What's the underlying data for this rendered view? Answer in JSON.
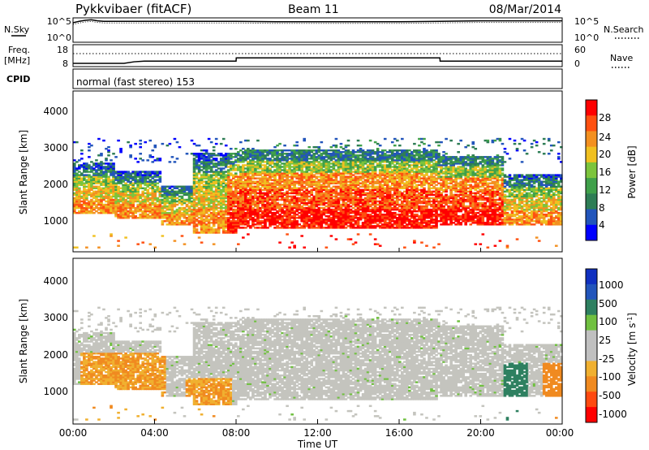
{
  "header": {
    "title": "Pykkvibaer (fitACF)",
    "beam": "Beam 11",
    "date": "08/Mar/2014"
  },
  "sky_panel": {
    "left_label": "N.Sky",
    "right_label": "N.Search",
    "left_ticks": [
      "10^5",
      "10^0"
    ],
    "right_ticks": [
      "10^5",
      "10^0"
    ]
  },
  "freq_panel": {
    "left_label_1": "Freq.",
    "left_label_2": "[MHz]",
    "right_label": "Nave",
    "left_ticks": [
      "18",
      "8"
    ],
    "right_ticks": [
      "60",
      "0"
    ]
  },
  "cpid_panel": {
    "label": "CPID",
    "text": "normal (fast stereo) 153"
  },
  "power_panel": {
    "ylabel": "Slant Range [km]",
    "yticks": [
      "4000",
      "3000",
      "2000",
      "1000"
    ],
    "colorbar_label": "Power [dB]",
    "colorbar_ticks": [
      "28",
      "24",
      "20",
      "16",
      "12",
      "8",
      "4"
    ]
  },
  "velocity_panel": {
    "ylabel": "Slant Range [km]",
    "yticks": [
      "4000",
      "3000",
      "2000",
      "1000"
    ],
    "colorbar_label": "Velocity [m s",
    "colorbar_label_sup": "-1",
    "colorbar_label_end": "]",
    "colorbar_ticks": [
      "1000",
      "500",
      "100",
      "25",
      "-25",
      "-100",
      "-500",
      "-1000"
    ]
  },
  "xaxis": {
    "ticks": [
      "00:00",
      "04:00",
      "08:00",
      "12:00",
      "16:00",
      "20:00",
      "00:00"
    ],
    "label": "Time UT"
  },
  "colors": {
    "power": [
      "#0000ff",
      "#2255bb",
      "#2e7d55",
      "#3fa04a",
      "#7cc43c",
      "#f0c020",
      "#f39020",
      "#ff5010",
      "#ff0000"
    ],
    "velocity": [
      "#ff0000",
      "#ff4a10",
      "#f08a20",
      "#f0b030",
      "#c0c0c0",
      "#c0c0c0",
      "#70c040",
      "#2e8060",
      "#2255bb",
      "#1030c0"
    ]
  },
  "chart_data": [
    {
      "type": "line",
      "x": [
        0,
        0.3,
        0.6,
        0.9,
        1.2,
        1.5,
        2,
        4,
        6,
        8,
        10,
        12,
        14,
        16,
        18,
        20,
        22,
        24
      ],
      "series": [
        {
          "values": [
            4,
            4.3,
            4.5,
            4.6,
            4.4,
            4.3,
            4.3,
            4.3,
            4.3,
            4.3,
            4.2,
            4.2,
            4.2,
            4.2,
            4.3,
            4.4,
            4.4,
            4.4
          ]
        }
      ],
      "ylim": [
        0,
        5
      ],
      "xlim": [
        0,
        24
      ]
    },
    {
      "type": "line",
      "x": [
        0,
        2.5,
        3,
        3.5,
        8,
        8.01,
        12,
        16,
        18,
        18.01,
        22,
        24
      ],
      "series": [
        {
          "values": [
            9.5,
            9.5,
            10.2,
            10.5,
            10.5,
            12,
            12,
            12,
            12,
            10.5,
            10.5,
            10.5
          ]
        }
      ],
      "ylim": [
        8,
        18
      ],
      "xlim": [
        0,
        24
      ]
    },
    {
      "type": "heatmap",
      "ylabel": "Slant Range [km]",
      "xlim": [
        0,
        24
      ],
      "ylim": [
        200,
        4600
      ],
      "colorbar": {
        "label": "Power [dB]",
        "ticks": [
          28,
          24,
          20,
          16,
          12,
          8,
          4
        ]
      }
    },
    {
      "type": "heatmap",
      "ylabel": "Slant Range [km]",
      "xlim": [
        0,
        24
      ],
      "ylim": [
        200,
        4600
      ],
      "colorbar": {
        "label": "Velocity [m s-1]",
        "ticks": [
          1000,
          500,
          100,
          25,
          -25,
          -100,
          -500,
          -1000
        ]
      }
    }
  ]
}
